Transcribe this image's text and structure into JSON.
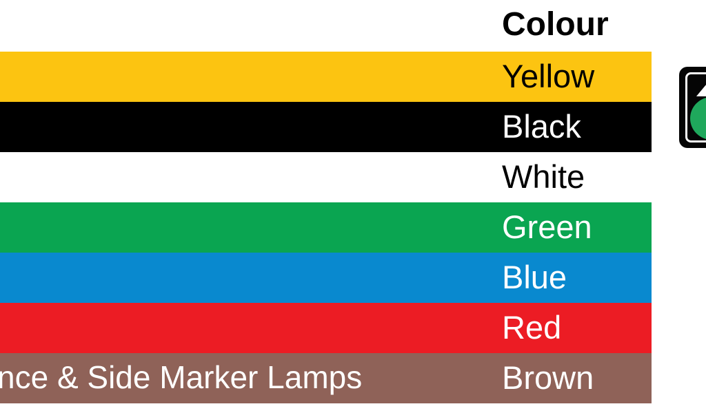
{
  "header": {
    "color_column_label": "Colour"
  },
  "table": {
    "rows": [
      {
        "name": "Yellow",
        "bar_color": "#fcc411",
        "text_color": "#000000"
      },
      {
        "name": "Black",
        "bar_color": "#000000",
        "text_color": "#ffffff"
      },
      {
        "name": "White",
        "bar_color": "#ffffff",
        "text_color": "#000000"
      },
      {
        "name": "Green",
        "bar_color": "#0aa551",
        "text_color": "#ffffff"
      },
      {
        "name": "Blue",
        "bar_color": "#0989cf",
        "text_color": "#ffffff"
      },
      {
        "name": "Red",
        "bar_color": "#ec1c24",
        "text_color": "#ffffff"
      },
      {
        "name": "Brown",
        "bar_color": "#8f6258",
        "text_color": "#ffffff",
        "function_text": "nce & Side Marker Lamps"
      }
    ]
  },
  "logo": {
    "description": "black-badge-with-green-circle-cut-off-at-right-edge",
    "colors": {
      "badge_bg": "#050505",
      "inner_border": "#ffffff",
      "triangle": "#ffffff",
      "circle_green": "#1fa85c"
    }
  }
}
